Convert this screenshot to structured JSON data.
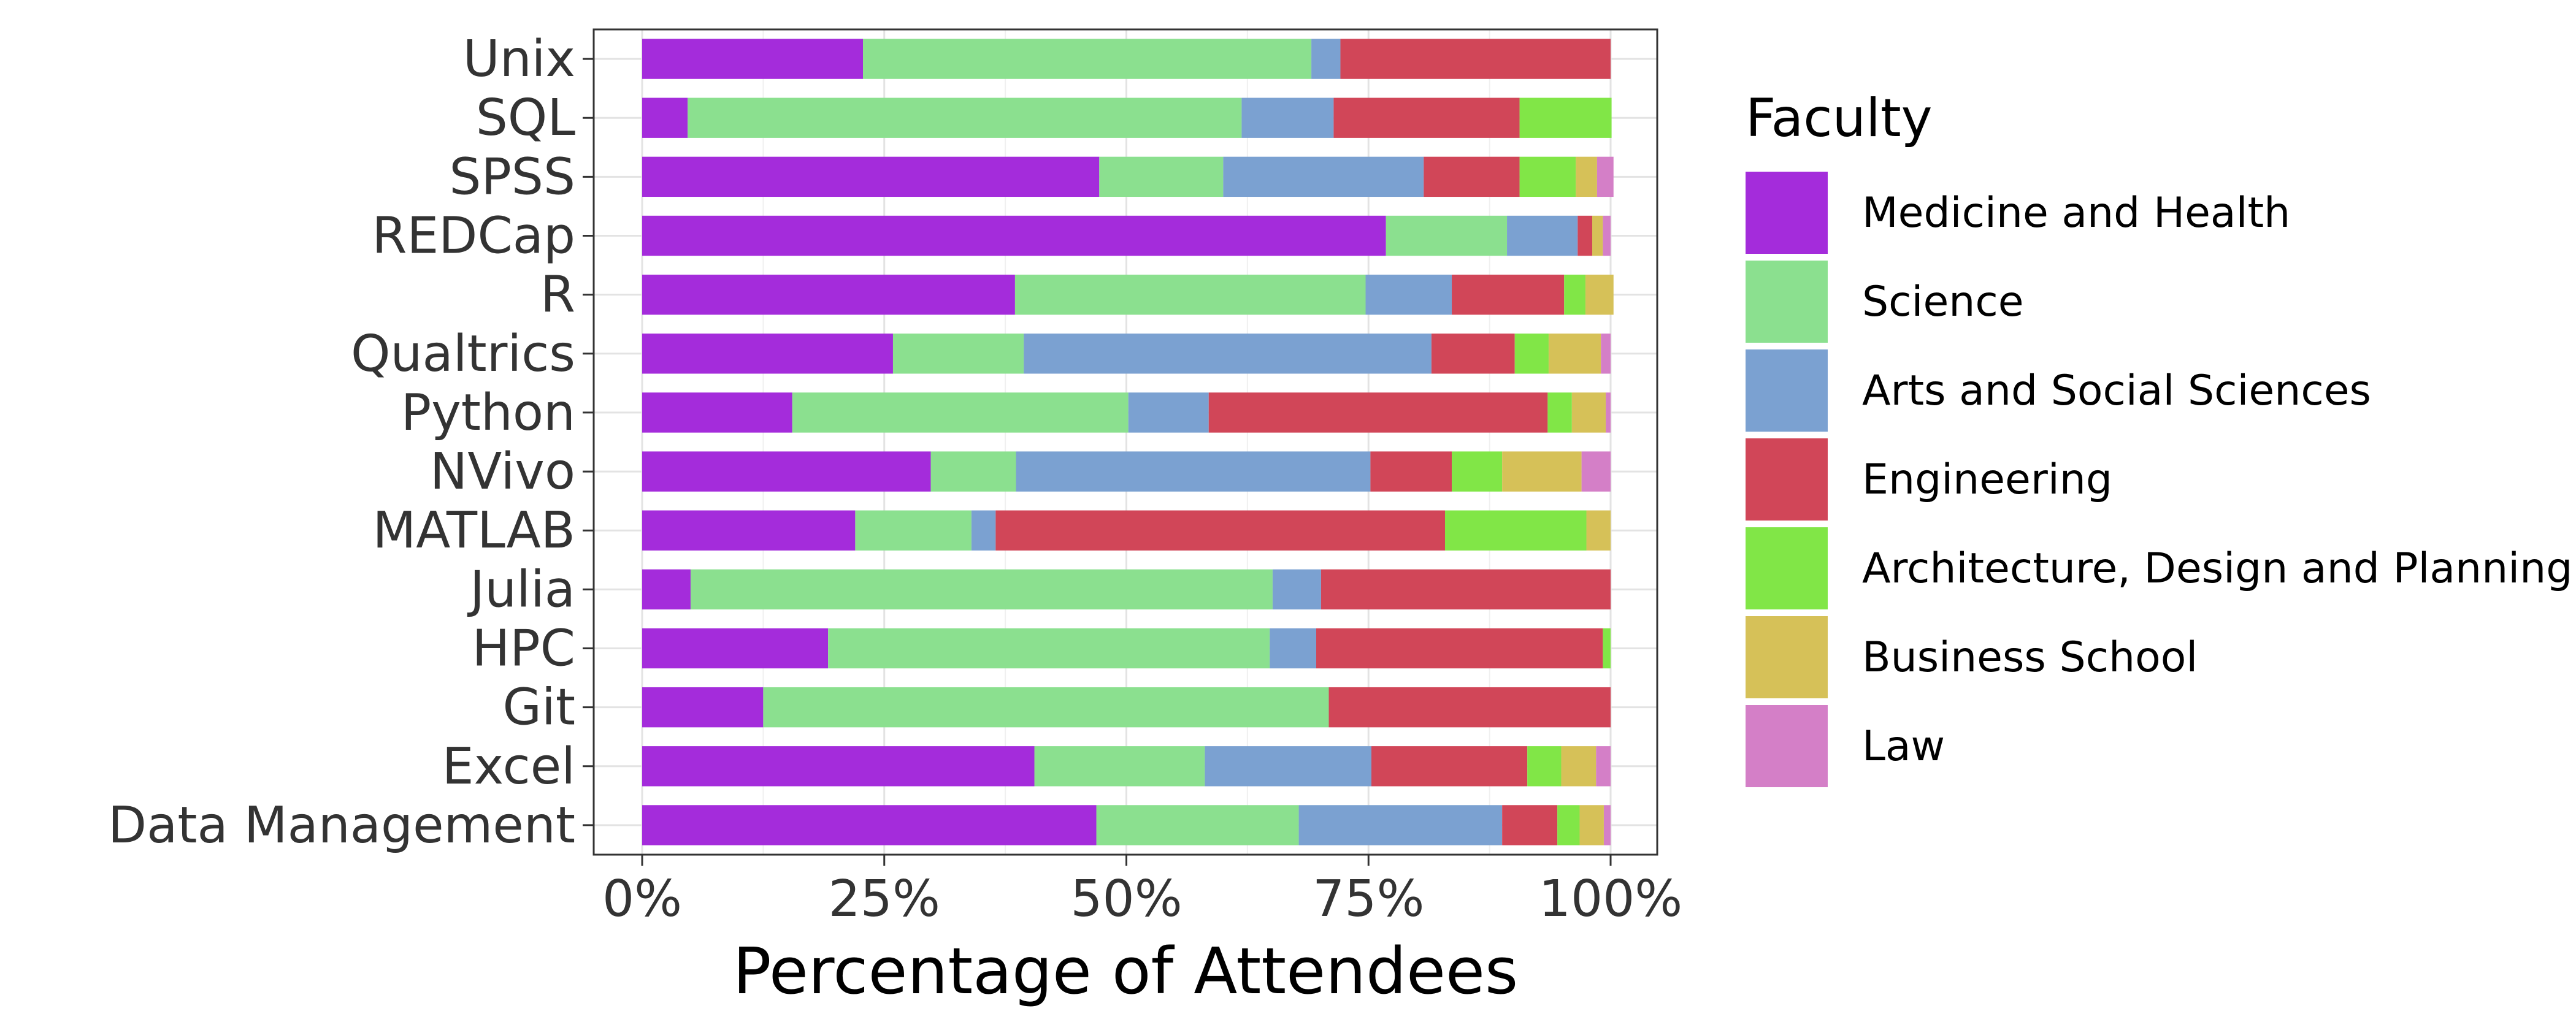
{
  "chart_data": {
    "type": "bar",
    "orientation": "horizontal",
    "stacked": true,
    "normalized": true,
    "xlabel": "Percentage of Attendees",
    "ylabel": "",
    "xlim": [
      0,
      100
    ],
    "x_ticks": [
      "0%",
      "25%",
      "50%",
      "75%",
      "100%"
    ],
    "grid": true,
    "legend_position": "right",
    "legend_title": "Faculty",
    "categories": [
      "Unix",
      "SQL",
      "SPSS",
      "REDCap",
      "R",
      "Qualtrics",
      "Python",
      "NVivo",
      "MATLAB",
      "Julia",
      "HPC",
      "Git",
      "Excel",
      "Data Management"
    ],
    "series": [
      {
        "name": "Medicine and Health",
        "color": "#A42CDB",
        "values": [
          22.8,
          4.7,
          47.2,
          76.8,
          38.5,
          25.9,
          15.5,
          29.8,
          22.0,
          5.0,
          19.2,
          12.5,
          40.5,
          46.9
        ]
      },
      {
        "name": "Science",
        "color": "#8BE08F",
        "values": [
          46.3,
          57.2,
          12.8,
          12.5,
          36.2,
          13.5,
          34.7,
          8.8,
          12.0,
          60.1,
          45.6,
          58.4,
          17.6,
          20.9
        ]
      },
      {
        "name": "Arts and Social Sciences",
        "color": "#7BA1D1",
        "values": [
          3.0,
          9.5,
          20.7,
          7.3,
          8.9,
          42.1,
          8.3,
          36.6,
          2.5,
          5.0,
          4.8,
          0.0,
          17.2,
          21.0
        ]
      },
      {
        "name": "Engineering",
        "color": "#D14658",
        "values": [
          27.9,
          19.2,
          9.9,
          1.5,
          11.6,
          8.6,
          35.0,
          8.4,
          46.4,
          29.9,
          29.6,
          29.1,
          16.1,
          5.7
        ]
      },
      {
        "name": "Architecture, Design and Planning",
        "color": "#81E647",
        "values": [
          0.0,
          9.5,
          5.8,
          0.0,
          2.2,
          3.5,
          2.5,
          5.2,
          14.6,
          0.0,
          0.8,
          0.0,
          3.5,
          2.3
        ]
      },
      {
        "name": "Business School",
        "color": "#D6C158",
        "values": [
          0.0,
          0.0,
          2.2,
          1.1,
          2.9,
          5.4,
          3.5,
          8.2,
          2.5,
          0.0,
          0.0,
          0.0,
          3.6,
          2.5
        ]
      },
      {
        "name": "Law",
        "color": "#D47FC7",
        "values": [
          0.0,
          0.0,
          1.7,
          0.8,
          0.0,
          1.0,
          0.5,
          3.0,
          0.0,
          0.0,
          0.0,
          0.0,
          1.5,
          0.7
        ]
      }
    ]
  }
}
